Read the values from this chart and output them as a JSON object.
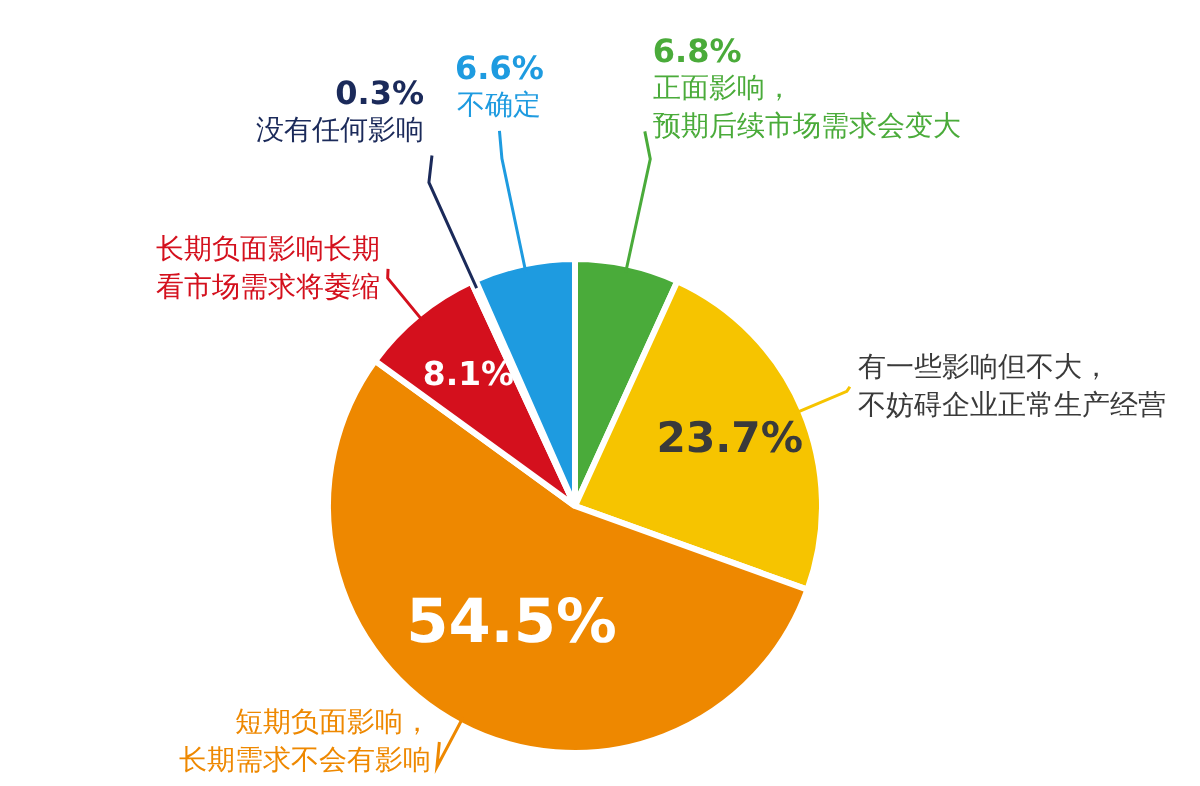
{
  "chart_data": {
    "type": "pie",
    "categories": [
      "正面影响，预期后续市场需求会变大",
      "有一些影响但不大，不妨碍企业正常生产经营",
      "短期负面影响，长期需求不会有影响",
      "长期负面影响长期看市场需求将萎缩",
      "没有任何影响",
      "不确定"
    ],
    "values": [
      6.8,
      23.7,
      54.5,
      8.1,
      0.3,
      6.6
    ],
    "value_labels": [
      "6.8%",
      "23.7%",
      "54.5%",
      "8.1%",
      "0.3%",
      "6.6%"
    ],
    "colors": [
      "#4aab3a",
      "#f6c400",
      "#ee8800",
      "#d4101d",
      "#1b2a5a",
      "#1e9be0"
    ],
    "legend": false
  }
}
